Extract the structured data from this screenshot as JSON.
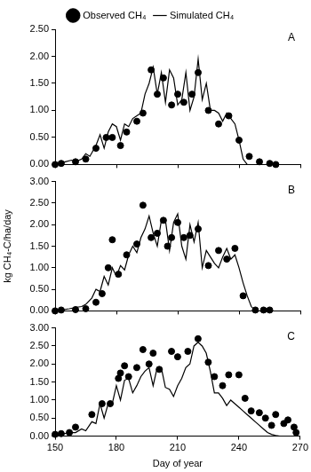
{
  "chart_data": [
    {
      "type": "line",
      "title": "A",
      "legend": "top",
      "grid": false,
      "tick_labels": "y",
      "xlim": [
        150,
        270
      ],
      "xticks": [
        150,
        180,
        210,
        240,
        270
      ],
      "ylim": [
        0,
        2.5
      ],
      "yticks": [
        {
          "value": 0,
          "label": "0.00"
        },
        {
          "value": 0.5,
          "label": "0.50"
        },
        {
          "value": 1,
          "label": "1.00"
        },
        {
          "value": 1.5,
          "label": "1.50"
        },
        {
          "value": 2,
          "label": "2.00"
        },
        {
          "value": 2.5,
          "label": "2.50"
        }
      ],
      "series": [
        {
          "name": "Observed CH₄",
          "type": "scatter",
          "marker": "circle",
          "color": "#000000",
          "x": [
            150,
            153,
            160,
            165,
            170,
            175,
            178,
            182,
            185,
            190,
            193,
            197,
            200,
            203,
            207,
            210,
            213,
            217,
            220,
            225,
            230,
            235,
            240,
            245,
            250,
            255,
            258
          ],
          "values": [
            0,
            0.02,
            0.05,
            0.1,
            0.3,
            0.5,
            0.5,
            0.35,
            0.6,
            0.8,
            0.95,
            1.75,
            1.3,
            1.6,
            1.1,
            1.3,
            1.15,
            1.3,
            1.7,
            1.0,
            0.75,
            0.9,
            0.45,
            0.15,
            0.05,
            0.02,
            0
          ]
        },
        {
          "name": "Simulated CH₄",
          "type": "line",
          "line_style": "solid",
          "color": "#000000",
          "x": [
            150,
            152,
            155,
            158,
            160,
            163,
            165,
            167,
            170,
            172,
            174,
            176,
            178,
            180,
            182,
            184,
            186,
            188,
            190,
            192,
            194,
            196,
            198,
            200,
            202,
            204,
            206,
            208,
            210,
            212,
            214,
            216,
            218,
            220,
            222,
            224,
            226,
            228,
            230,
            232,
            234,
            236,
            238,
            240,
            242,
            244
          ],
          "values": [
            0,
            0.02,
            0.05,
            0.08,
            0.05,
            0.1,
            0.2,
            0.15,
            0.35,
            0.55,
            0.3,
            0.6,
            0.75,
            0.7,
            0.45,
            0.75,
            0.7,
            0.85,
            0.9,
            0.95,
            1.3,
            1.5,
            1.8,
            1.3,
            1.7,
            1.15,
            1.75,
            1.6,
            1.1,
            1.2,
            1.7,
            1.0,
            1.25,
            1.95,
            1.2,
            1.5,
            1.0,
            1.0,
            0.95,
            0.8,
            0.95,
            0.85,
            0.75,
            0.45,
            0.1,
            0
          ]
        }
      ]
    },
    {
      "type": "line",
      "title": "B",
      "grid": false,
      "tick_labels": "y",
      "y_label": "kg CH₄-C/ha/day",
      "xlim": [
        150,
        270
      ],
      "xticks": [
        150,
        180,
        210,
        240,
        270
      ],
      "ylim": [
        0,
        3
      ],
      "yticks": [
        {
          "value": 0,
          "label": "0.00"
        },
        {
          "value": 0.5,
          "label": "0.50"
        },
        {
          "value": 1,
          "label": "1.00"
        },
        {
          "value": 1.5,
          "label": "1.50"
        },
        {
          "value": 2,
          "label": "2.00"
        },
        {
          "value": 2.5,
          "label": "2.50"
        },
        {
          "value": 3,
          "label": "3.00"
        }
      ],
      "series": [
        {
          "type": "scatter",
          "marker": "circle",
          "color": "#000000",
          "x": [
            150,
            153,
            160,
            165,
            170,
            173,
            176,
            178,
            181,
            185,
            190,
            193,
            197,
            200,
            203,
            205,
            207,
            210,
            213,
            216,
            220,
            225,
            230,
            234,
            238,
            242,
            248,
            252,
            255
          ],
          "values": [
            0,
            0.02,
            0.03,
            0.05,
            0.2,
            0.4,
            1.0,
            1.65,
            0.85,
            1.3,
            1.55,
            2.45,
            1.7,
            1.8,
            2.1,
            1.5,
            1.7,
            2.05,
            1.7,
            1.75,
            1.9,
            1.05,
            1.4,
            1.2,
            1.45,
            0.35,
            0.02,
            0.02,
            0.02
          ]
        },
        {
          "type": "line",
          "line_style": "solid",
          "color": "#000000",
          "x": [
            150,
            153,
            157,
            160,
            163,
            165,
            168,
            170,
            172,
            174,
            176,
            178,
            180,
            182,
            184,
            186,
            188,
            190,
            192,
            194,
            196,
            198,
            200,
            202,
            204,
            206,
            208,
            210,
            212,
            214,
            216,
            218,
            220,
            222,
            224,
            226,
            228,
            230,
            232,
            234,
            236,
            238,
            240,
            242,
            244,
            246,
            248
          ],
          "values": [
            0,
            0.02,
            0.05,
            0.08,
            0.1,
            0.15,
            0.3,
            0.5,
            0.45,
            0.8,
            0.6,
            1.0,
            0.8,
            1.05,
            0.95,
            1.3,
            1.5,
            1.35,
            1.7,
            1.9,
            2.2,
            1.8,
            1.5,
            2.1,
            2.1,
            1.4,
            2.05,
            2.25,
            1.5,
            1.2,
            2.0,
            1.6,
            2.05,
            1.0,
            1.4,
            1.25,
            1.1,
            1.0,
            1.25,
            1.45,
            1.2,
            1.3,
            1.0,
            0.65,
            0.35,
            0.1,
            0
          ]
        }
      ]
    },
    {
      "type": "line",
      "title": "C",
      "grid": false,
      "x_label": "Day of year",
      "xlim": [
        150,
        270
      ],
      "xticks": [
        150,
        180,
        210,
        240,
        270
      ],
      "ylim": [
        0,
        3
      ],
      "yticks": [
        {
          "value": 0,
          "label": "0.00"
        },
        {
          "value": 0.5,
          "label": "0.50"
        },
        {
          "value": 1,
          "label": "1.00"
        },
        {
          "value": 1.5,
          "label": "1.50"
        },
        {
          "value": 2,
          "label": "2.00"
        },
        {
          "value": 2.5,
          "label": "2.50"
        },
        {
          "value": 3,
          "label": "3.00"
        }
      ],
      "series": [
        {
          "type": "scatter",
          "marker": "circle",
          "color": "#000000",
          "x": [
            150,
            153,
            157,
            160,
            168,
            173,
            177,
            181,
            182,
            184,
            186,
            190,
            193,
            196,
            198,
            201,
            207,
            210,
            215,
            220,
            225,
            228,
            232,
            235,
            240,
            243,
            246,
            250,
            253,
            256,
            258,
            262,
            264,
            267,
            268
          ],
          "values": [
            0.05,
            0.07,
            0.1,
            0.25,
            0.6,
            0.9,
            0.9,
            1.6,
            1.75,
            1.95,
            1.65,
            1.9,
            2.4,
            2.0,
            2.3,
            1.85,
            2.35,
            2.2,
            2.35,
            2.7,
            2.05,
            1.65,
            1.4,
            1.7,
            1.7,
            1.05,
            0.7,
            0.65,
            0.5,
            0.3,
            0.6,
            0.35,
            0.45,
            0.25,
            0.1
          ]
        },
        {
          "type": "line",
          "line_style": "solid",
          "color": "#000000",
          "x": [
            150,
            153,
            157,
            160,
            163,
            165,
            168,
            170,
            172,
            174,
            176,
            178,
            180,
            182,
            184,
            186,
            188,
            190,
            192,
            194,
            196,
            198,
            200,
            202,
            204,
            206,
            208,
            210,
            212,
            214,
            216,
            218,
            220,
            222,
            224,
            226,
            228,
            230,
            232,
            234,
            236,
            238,
            240,
            242,
            244,
            246,
            248,
            250,
            252,
            254,
            256,
            258,
            260
          ],
          "values": [
            0,
            0.05,
            0.1,
            0.1,
            0.2,
            0.15,
            0.4,
            0.35,
            0.9,
            0.5,
            0.9,
            0.9,
            1.4,
            1.0,
            1.55,
            1.6,
            1.2,
            1.4,
            1.65,
            1.8,
            1.9,
            1.4,
            1.9,
            1.9,
            1.35,
            1.3,
            1.1,
            1.4,
            1.6,
            1.9,
            2.0,
            2.5,
            2.6,
            2.5,
            2.3,
            1.8,
            1.2,
            1.2,
            1.05,
            0.85,
            1.0,
            0.9,
            0.8,
            0.7,
            0.6,
            0.5,
            0.4,
            0.3,
            0.2,
            0.1,
            0.05,
            0.02,
            0
          ]
        }
      ]
    }
  ]
}
